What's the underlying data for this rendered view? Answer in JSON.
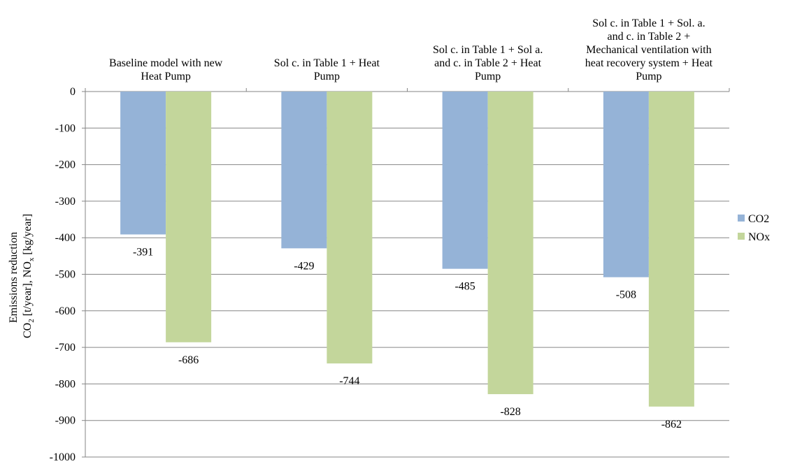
{
  "chart_data": {
    "type": "bar",
    "categories": [
      [
        "Baseline model with new",
        "Heat Pump"
      ],
      [
        "Sol c. in Table 1 + Heat",
        "Pump"
      ],
      [
        "Sol c. in Table 1 + Sol a.",
        "and c. in Table 2 + Heat",
        "Pump"
      ],
      [
        "Sol c. in Table 1 + Sol. a.",
        "and c. in Table 2 +",
        "Mechanical ventilation with",
        "heat recovery system + Heat",
        "Pump"
      ]
    ],
    "series": [
      {
        "name": "CO2",
        "color": "#95b3d7",
        "values": [
          -391,
          -429,
          -485,
          -508
        ]
      },
      {
        "name": "NOx",
        "color": "#c3d69b",
        "values": [
          -686,
          -744,
          -828,
          -862
        ]
      }
    ],
    "data_labels": {
      "CO2": [
        "-391",
        "-429",
        "-485",
        "-508"
      ],
      "NOx": [
        "-686",
        "-744",
        "-828",
        "-862"
      ]
    },
    "ylim": [
      -1000,
      0
    ],
    "y_ticks": [
      0,
      -100,
      -200,
      -300,
      -400,
      -500,
      -600,
      -700,
      -800,
      -900,
      -1000
    ],
    "ylabel": {
      "line1": "Emissions reduction",
      "co2": "CO",
      "co2_sub": "2",
      "co2_unit": " [t/year], NO",
      "nox_sub": "x",
      "nox_unit": " [kg/year]"
    },
    "grid": true,
    "legend": "right",
    "gridline_color": "#868686"
  }
}
